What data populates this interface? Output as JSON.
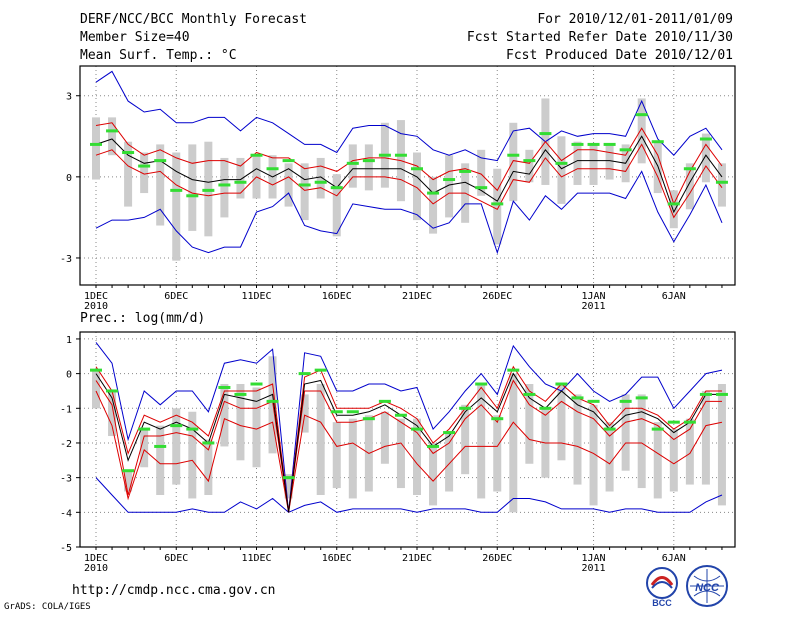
{
  "header": {
    "title": "DERF/NCC/BCC Monthly Forecast",
    "member_size": "Member Size=40",
    "variable": "Mean Surf. Temp.: °C",
    "period": "For 2010/12/01-2011/01/09",
    "started": "Fcst Started Refer Date 2010/11/30",
    "produced": "Fcst Produced Date 2010/12/01"
  },
  "footer": {
    "url": "http://cmdp.ncc.cma.gov.cn",
    "credit": "GrADS: COLA/IGES",
    "logo_bcc": "BCC",
    "logo_ncc": "NCC"
  },
  "colors": {
    "box": "#cccccc",
    "obs": "#33dd33",
    "mean": "#000000",
    "spread": "#dd0000",
    "range": "#0000cc",
    "grid": "#888888"
  },
  "chart_data": [
    {
      "type": "line",
      "title": "Mean Surf. Temp.: °C",
      "x": [
        1,
        2,
        3,
        4,
        5,
        6,
        7,
        8,
        9,
        10,
        11,
        12,
        13,
        14,
        15,
        16,
        17,
        18,
        19,
        20,
        21,
        22,
        23,
        24,
        25,
        26,
        27,
        28,
        29,
        30,
        31,
        32,
        33,
        34,
        35,
        36,
        37,
        38,
        39,
        40
      ],
      "xtick_labels": [
        {
          "day": 1,
          "label": "1DEC",
          "sub": "2010"
        },
        {
          "day": 6,
          "label": "6DEC"
        },
        {
          "day": 11,
          "label": "11DEC"
        },
        {
          "day": 16,
          "label": "16DEC"
        },
        {
          "day": 21,
          "label": "21DEC"
        },
        {
          "day": 26,
          "label": "26DEC"
        },
        {
          "day": 32,
          "label": "1JAN",
          "sub": "2011"
        },
        {
          "day": 37,
          "label": "6JAN"
        }
      ],
      "ylim": [
        -4.0,
        4.1
      ],
      "yticks": [
        -3,
        0,
        3
      ],
      "series": [
        {
          "name": "max",
          "values": [
            3.5,
            3.9,
            2.8,
            2.4,
            2.5,
            2.0,
            2.0,
            2.2,
            2.2,
            1.7,
            2.2,
            2.0,
            1.6,
            1.2,
            1.2,
            0.9,
            1.8,
            1.9,
            1.9,
            1.6,
            1.5,
            1.0,
            0.8,
            1.0,
            0.7,
            0.6,
            1.7,
            1.8,
            1.3,
            1.7,
            1.5,
            1.6,
            1.6,
            1.5,
            2.8,
            1.4,
            0.8,
            1.5,
            1.8,
            1.0
          ]
        },
        {
          "name": "upper",
          "values": [
            1.9,
            2.0,
            1.2,
            0.8,
            1.0,
            0.7,
            0.5,
            0.6,
            0.6,
            0.4,
            0.9,
            0.7,
            0.7,
            0.3,
            0.4,
            0.2,
            0.6,
            0.7,
            0.7,
            0.6,
            0.4,
            -0.1,
            0.2,
            0.3,
            0.1,
            -0.5,
            0.6,
            0.5,
            1.3,
            0.6,
            1.0,
            1.0,
            0.9,
            0.8,
            1.8,
            0.8,
            -1.0,
            0.2,
            1.2,
            0.4
          ]
        },
        {
          "name": "mean",
          "values": [
            1.2,
            1.4,
            0.8,
            0.5,
            0.6,
            0.2,
            -0.1,
            -0.2,
            -0.1,
            -0.1,
            0.3,
            0.0,
            0.3,
            -0.1,
            0.0,
            -0.4,
            0.3,
            0.3,
            0.3,
            0.3,
            0.0,
            -0.6,
            -0.3,
            -0.2,
            -0.5,
            -0.9,
            0.2,
            0.1,
            1.0,
            0.3,
            0.6,
            0.6,
            0.6,
            0.5,
            1.5,
            0.4,
            -1.3,
            -0.2,
            0.8,
            0.0
          ]
        },
        {
          "name": "lower",
          "values": [
            0.8,
            1.0,
            0.4,
            0.1,
            0.2,
            -0.3,
            -0.6,
            -0.7,
            -0.6,
            -0.6,
            0.0,
            -0.3,
            0.0,
            -0.5,
            -0.4,
            -0.7,
            0.0,
            0.0,
            0.0,
            -0.1,
            -0.4,
            -1.0,
            -0.6,
            -0.6,
            -0.9,
            -1.2,
            -0.1,
            -0.2,
            0.7,
            0.0,
            0.3,
            0.3,
            0.3,
            0.2,
            1.2,
            0.0,
            -1.5,
            -0.6,
            0.4,
            -0.4
          ]
        },
        {
          "name": "min",
          "values": [
            -1.9,
            -1.6,
            -1.6,
            -1.5,
            -1.2,
            -2.0,
            -2.6,
            -2.8,
            -2.6,
            -2.6,
            -1.3,
            -1.1,
            -0.6,
            -1.8,
            -2.0,
            -2.1,
            -1.0,
            -1.1,
            -1.2,
            -1.2,
            -1.4,
            -1.9,
            -1.7,
            -1.0,
            -1.0,
            -2.8,
            -0.9,
            -1.6,
            -0.7,
            -1.2,
            -0.6,
            -0.6,
            -0.6,
            -0.8,
            0.2,
            -1.3,
            -2.4,
            -1.4,
            -0.3,
            -1.7
          ]
        },
        {
          "name": "box_top",
          "values": [
            2.2,
            2.2,
            1.3,
            0.9,
            1.2,
            0.9,
            1.2,
            1.3,
            0.7,
            0.7,
            0.8,
            0.8,
            0.5,
            0.5,
            0.7,
            0.1,
            1.2,
            1.2,
            2.0,
            2.1,
            0.9,
            0.0,
            0.8,
            0.5,
            1.0,
            0.3,
            2.0,
            1.0,
            2.9,
            1.5,
            1.3,
            1.2,
            1.2,
            1.2,
            2.9,
            1.3,
            -0.5,
            0.5,
            1.6,
            0.5
          ]
        },
        {
          "name": "box_bottom",
          "values": [
            -0.1,
            0.8,
            -1.1,
            -0.6,
            -1.8,
            -3.1,
            -2.0,
            -2.2,
            -1.5,
            -0.8,
            -0.8,
            -0.8,
            -1.1,
            -1.6,
            -0.8,
            -2.2,
            -0.4,
            -0.5,
            -0.4,
            -0.9,
            -1.6,
            -2.1,
            -1.5,
            -1.7,
            -0.7,
            -2.5,
            -0.9,
            -0.2,
            -0.3,
            -1.0,
            -0.3,
            -0.3,
            -0.1,
            -0.2,
            0.5,
            -0.6,
            -1.9,
            -1.2,
            -0.2,
            -1.1
          ]
        },
        {
          "name": "observed",
          "values": [
            1.2,
            1.7,
            0.9,
            0.4,
            0.6,
            -0.5,
            -0.7,
            -0.5,
            -0.3,
            -0.2,
            0.8,
            0.3,
            0.6,
            -0.3,
            -0.2,
            -0.4,
            0.5,
            0.6,
            0.8,
            0.8,
            0.3,
            -0.6,
            -0.1,
            0.2,
            -0.4,
            -1.0,
            0.8,
            0.6,
            1.6,
            0.5,
            1.2,
            1.2,
            1.2,
            1.0,
            2.3,
            1.3,
            -1.0,
            0.3,
            1.4,
            -0.2
          ]
        }
      ]
    },
    {
      "type": "line",
      "title": "Prec.: log(mm/d)",
      "x": [
        1,
        2,
        3,
        4,
        5,
        6,
        7,
        8,
        9,
        10,
        11,
        12,
        13,
        14,
        15,
        16,
        17,
        18,
        19,
        20,
        21,
        22,
        23,
        24,
        25,
        26,
        27,
        28,
        29,
        30,
        31,
        32,
        33,
        34,
        35,
        36,
        37,
        38,
        39,
        40
      ],
      "xtick_labels": [
        {
          "day": 1,
          "label": "1DEC",
          "sub": "2010"
        },
        {
          "day": 6,
          "label": "6DEC"
        },
        {
          "day": 11,
          "label": "11DEC"
        },
        {
          "day": 16,
          "label": "16DEC"
        },
        {
          "day": 21,
          "label": "21DEC"
        },
        {
          "day": 26,
          "label": "26DEC"
        },
        {
          "day": 32,
          "label": "1JAN",
          "sub": "2011"
        },
        {
          "day": 37,
          "label": "6JAN"
        }
      ],
      "ylim": [
        -5,
        1.2
      ],
      "yticks": [
        -5,
        -4,
        -3,
        -2,
        -1,
        0,
        1
      ],
      "series": [
        {
          "name": "max",
          "values": [
            0.9,
            0.3,
            -1.9,
            -0.5,
            -0.9,
            -0.5,
            -0.5,
            -1.1,
            0.3,
            0.4,
            0.3,
            0.7,
            -4.0,
            0.6,
            0.5,
            -0.5,
            -0.5,
            -0.3,
            -0.3,
            -0.5,
            -0.4,
            -1.6,
            -1.1,
            -0.5,
            0.0,
            -0.6,
            0.8,
            0.2,
            -0.3,
            -0.5,
            0.0,
            -0.5,
            -0.8,
            -0.6,
            -0.1,
            -0.1,
            -1.0,
            -0.5,
            0.0,
            0.1
          ]
        },
        {
          "name": "upper",
          "values": [
            0.2,
            -0.5,
            -2.3,
            -1.2,
            -1.4,
            -1.2,
            -1.4,
            -1.8,
            -0.5,
            -0.5,
            -0.5,
            -0.3,
            -4.0,
            -0.1,
            0.1,
            -1.0,
            -1.0,
            -1.0,
            -0.8,
            -1.0,
            -1.3,
            -2.0,
            -1.6,
            -1.0,
            -0.4,
            -1.0,
            0.2,
            -0.5,
            -0.8,
            -0.3,
            -0.7,
            -0.9,
            -1.5,
            -1.0,
            -1.0,
            -1.2,
            -1.6,
            -1.3,
            -0.5,
            -0.5
          ]
        },
        {
          "name": "mean",
          "values": [
            0.0,
            -0.7,
            -2.5,
            -1.4,
            -1.6,
            -1.4,
            -1.6,
            -2.0,
            -0.6,
            -0.7,
            -0.8,
            -0.6,
            -4.0,
            -0.3,
            -0.2,
            -1.2,
            -1.2,
            -1.1,
            -0.9,
            -1.2,
            -1.5,
            -2.1,
            -1.8,
            -1.1,
            -0.7,
            -1.1,
            0.0,
            -0.7,
            -1.0,
            -0.5,
            -0.9,
            -1.1,
            -1.6,
            -1.2,
            -1.1,
            -1.3,
            -1.7,
            -1.4,
            -0.6,
            -0.6
          ]
        },
        {
          "name": "lower",
          "values": [
            -0.2,
            -0.9,
            -3.5,
            -1.8,
            -1.8,
            -1.7,
            -1.8,
            -2.2,
            -0.8,
            -1.0,
            -1.0,
            -0.8,
            -4.0,
            -0.5,
            -0.5,
            -1.4,
            -1.4,
            -1.3,
            -1.1,
            -1.4,
            -1.7,
            -2.3,
            -2.0,
            -1.3,
            -0.9,
            -1.4,
            -0.2,
            -0.9,
            -1.2,
            -0.8,
            -1.1,
            -1.3,
            -1.8,
            -1.4,
            -1.3,
            -1.5,
            -1.9,
            -1.6,
            -0.8,
            -0.8
          ]
        },
        {
          "name": "lower2",
          "values": [
            -0.5,
            -1.5,
            -3.6,
            -2.2,
            -2.6,
            -2.6,
            -2.5,
            -3.1,
            -1.3,
            -1.5,
            -1.6,
            -1.4,
            -4.0,
            -1.2,
            -1.4,
            -2.1,
            -2.0,
            -2.3,
            -2.1,
            -2.0,
            -2.6,
            -3.1,
            -2.6,
            -2.1,
            -2.1,
            -2.1,
            -1.4,
            -1.9,
            -2.0,
            -2.0,
            -2.1,
            -2.3,
            -2.6,
            -2.0,
            -2.0,
            -2.3,
            -2.6,
            -2.3,
            -1.5,
            -1.4
          ]
        },
        {
          "name": "min",
          "values": [
            -3.0,
            -3.5,
            -4.0,
            -4.0,
            -4.0,
            -4.0,
            -3.9,
            -4.0,
            -4.0,
            -3.7,
            -3.9,
            -3.6,
            -4.0,
            -3.8,
            -3.7,
            -4.0,
            -3.9,
            -3.9,
            -3.9,
            -3.9,
            -4.0,
            -3.9,
            -3.9,
            -3.9,
            -4.0,
            -4.0,
            -3.6,
            -3.6,
            -3.7,
            -3.9,
            -3.9,
            -3.9,
            -4.0,
            -3.9,
            -3.9,
            -4.0,
            -4.0,
            -4.0,
            -3.7,
            -3.5
          ]
        },
        {
          "name": "box_top",
          "values": [
            0.1,
            -0.5,
            -2.8,
            -1.6,
            -1.5,
            -1.0,
            -1.1,
            -1.9,
            -0.3,
            -0.3,
            -0.4,
            0.5,
            -2.9,
            -0.6,
            -0.3,
            -1.4,
            -1.3,
            -1.2,
            -1.1,
            -1.3,
            -1.3,
            -2.0,
            -1.7,
            -0.9,
            -0.3,
            -1.2,
            0.0,
            -0.3,
            -1.0,
            -0.3,
            -0.6,
            -0.9,
            -1.4,
            -0.6,
            -0.6,
            -1.4,
            -1.6,
            -1.3,
            -0.5,
            -0.3
          ]
        },
        {
          "name": "box_bottom",
          "values": [
            -1.0,
            -1.8,
            -3.4,
            -2.7,
            -3.5,
            -3.2,
            -3.6,
            -3.5,
            -2.1,
            -2.5,
            -2.7,
            -2.3,
            -3.6,
            -1.7,
            -3.5,
            -3.3,
            -3.6,
            -3.4,
            -2.6,
            -3.3,
            -3.5,
            -3.8,
            -3.4,
            -2.9,
            -3.6,
            -3.4,
            -4.0,
            -2.6,
            -3.0,
            -2.5,
            -3.2,
            -3.8,
            -3.4,
            -2.8,
            -3.3,
            -3.6,
            -3.4,
            -3.2,
            -3.2,
            -3.8
          ]
        },
        {
          "name": "observed",
          "values": [
            0.1,
            -0.5,
            -2.8,
            -1.6,
            -2.1,
            -1.5,
            -1.6,
            -2.0,
            -0.4,
            -0.6,
            -0.3,
            -0.8,
            -3.0,
            0.0,
            0.1,
            -1.1,
            -1.1,
            -1.3,
            -0.8,
            -1.2,
            -1.6,
            -2.1,
            -1.7,
            -1.0,
            -0.3,
            -1.3,
            0.1,
            -0.6,
            -1.0,
            -0.3,
            -0.7,
            -0.8,
            -1.6,
            -0.8,
            -0.7,
            -1.6,
            -1.4,
            -1.4,
            -0.6,
            -0.6
          ]
        }
      ]
    }
  ]
}
